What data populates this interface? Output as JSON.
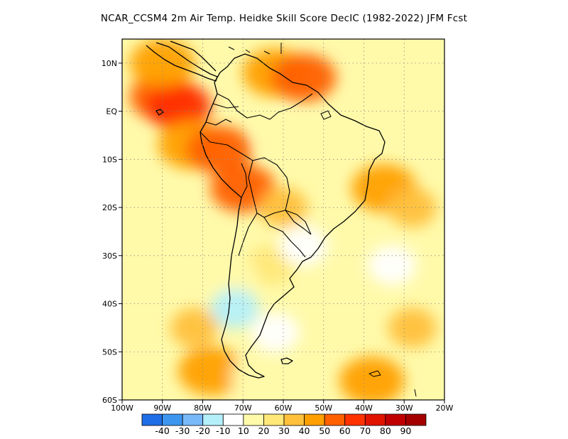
{
  "title": "NCAR_CCSM4  2m Air Temp. Heidke Skill Score DecIC (1982-2022) JFM Fcst",
  "map": {
    "lon_range": [
      -100,
      -20
    ],
    "lat_range": [
      -60,
      15
    ],
    "lat_ticks": [
      {
        "value": 10,
        "label": "10N"
      },
      {
        "value": 0,
        "label": "EQ"
      },
      {
        "value": -10,
        "label": "10S"
      },
      {
        "value": -20,
        "label": "20S"
      },
      {
        "value": -30,
        "label": "30S"
      },
      {
        "value": -40,
        "label": "40S"
      },
      {
        "value": -50,
        "label": "50S"
      },
      {
        "value": -60,
        "label": "60S"
      }
    ],
    "lon_ticks": [
      {
        "value": -100,
        "label": "100W"
      },
      {
        "value": -90,
        "label": "90W"
      },
      {
        "value": -80,
        "label": "80W"
      },
      {
        "value": -70,
        "label": "70W"
      },
      {
        "value": -60,
        "label": "60W"
      },
      {
        "value": -50,
        "label": "50W"
      },
      {
        "value": -40,
        "label": "40W"
      },
      {
        "value": -30,
        "label": "30W"
      },
      {
        "value": -20,
        "label": "20W"
      }
    ],
    "grid": "dotted"
  },
  "colorbar": {
    "colors": [
      "#1e6ee6",
      "#3c96f0",
      "#78b9fa",
      "#b4f0fa",
      "#ffffff",
      "#fffaaa",
      "#ffe878",
      "#ffc03c",
      "#ffa000",
      "#ff6000",
      "#ff3200",
      "#e11400",
      "#c00000",
      "#a50000"
    ],
    "labels": [
      "-40",
      "-30",
      "-20",
      "-10",
      "10",
      "20",
      "30",
      "40",
      "50",
      "60",
      "70",
      "80",
      "90"
    ]
  },
  "chart_data": {
    "type": "heatmap",
    "title": "NCAR_CCSM4  2m Air Temp. Heidke Skill Score DecIC (1982-2022) JFM Fcst",
    "x_range": [
      -100,
      -20
    ],
    "y_range": [
      -60,
      15
    ],
    "levels": [
      -40,
      -30,
      -20,
      -10,
      10,
      20,
      30,
      40,
      50,
      60,
      70,
      80,
      90
    ],
    "regions": [
      {
        "lon": -90,
        "lat": 3,
        "value": 55
      },
      {
        "lon": -86,
        "lat": 1,
        "value": 60
      },
      {
        "lon": -83,
        "lat": -7,
        "value": 45
      },
      {
        "lon": -76,
        "lat": -8,
        "value": 50
      },
      {
        "lon": -70,
        "lat": -16,
        "value": 50
      },
      {
        "lon": -90,
        "lat": 10,
        "value": 45
      },
      {
        "lon": -62,
        "lat": 8,
        "value": 45
      },
      {
        "lon": -55,
        "lat": 7,
        "value": 50
      },
      {
        "lon": -35,
        "lat": -16,
        "value": 40
      },
      {
        "lon": -28,
        "lat": -20,
        "value": 35
      },
      {
        "lon": -60,
        "lat": -20,
        "value": 35
      },
      {
        "lon": -63,
        "lat": -32,
        "value": 25
      },
      {
        "lon": -82,
        "lat": -45,
        "value": 30
      },
      {
        "lon": -78,
        "lat": -54,
        "value": 45
      },
      {
        "lon": -38,
        "lat": -56,
        "value": 45
      },
      {
        "lon": -28,
        "lat": -45,
        "value": 30
      },
      {
        "lon": -60,
        "lat": -5,
        "value": 10
      },
      {
        "lon": -72,
        "lat": -35,
        "value": 10
      },
      {
        "lon": -67,
        "lat": -55,
        "value": 10
      },
      {
        "lon": -72,
        "lat": -41,
        "value": -20
      },
      {
        "lon": -62,
        "lat": -46,
        "value": -10
      },
      {
        "lon": -55,
        "lat": -28,
        "value": -10
      },
      {
        "lon": -33,
        "lat": -32,
        "value": -10
      }
    ]
  }
}
